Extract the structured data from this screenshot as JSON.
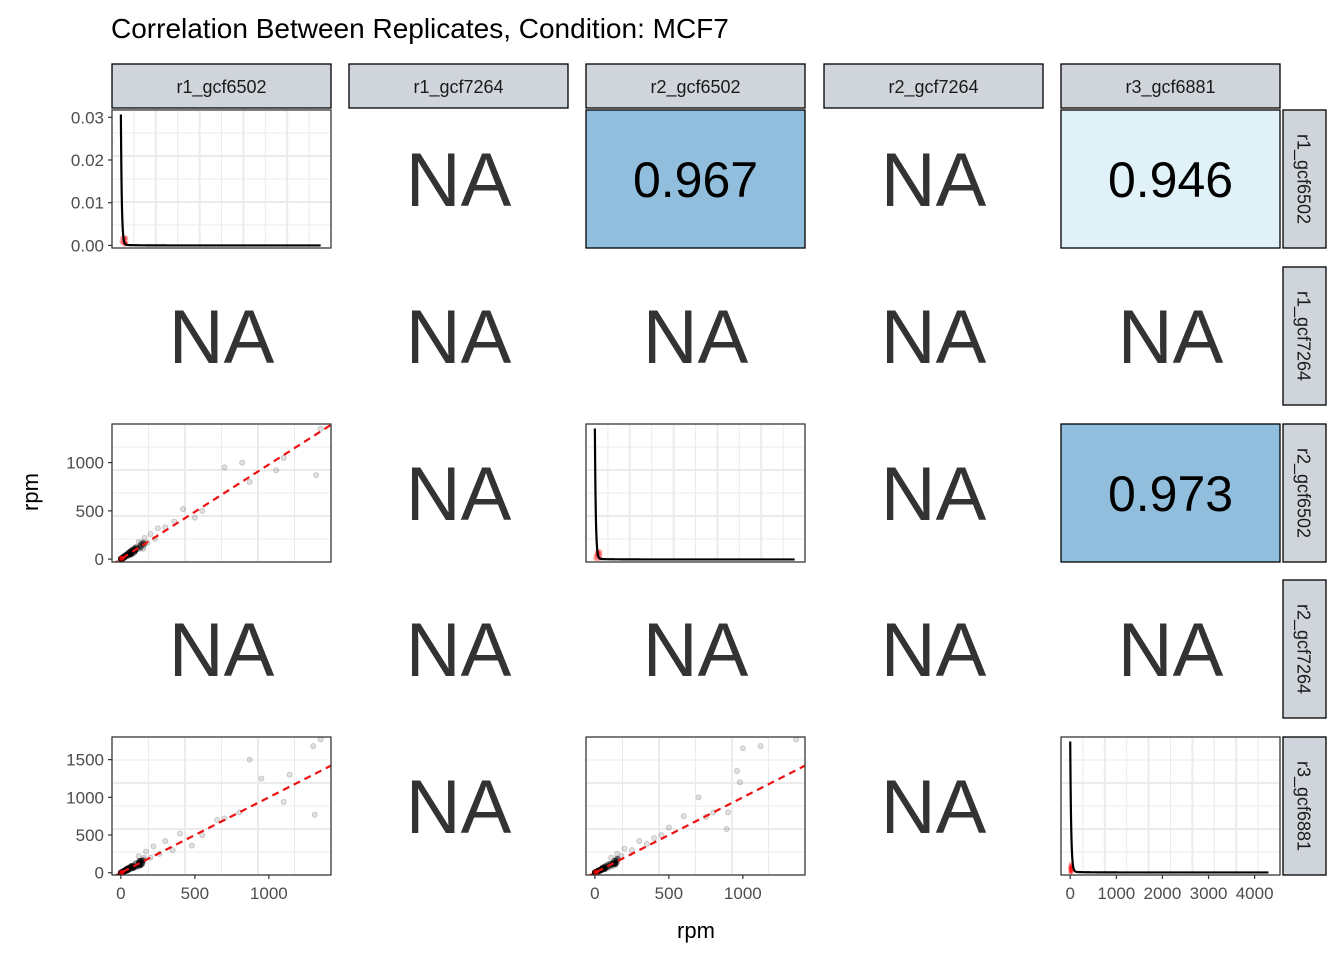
{
  "chart_data": {
    "type": "pairs",
    "title": "Correlation Between Replicates, Condition: MCF7",
    "xlabel": "rpm",
    "ylabel": "rpm",
    "samples": [
      "r1_gcf6502",
      "r1_gcf7264",
      "r2_gcf6502",
      "r2_gcf7264",
      "r3_gcf6881"
    ],
    "na_label": "NA",
    "correlations": [
      {
        "row": "r1_gcf6502",
        "col": "r2_gcf6502",
        "value": "0.967",
        "fill": "#91bedc"
      },
      {
        "row": "r1_gcf6502",
        "col": "r3_gcf6881",
        "value": "0.946",
        "fill": "#e0f2f8"
      },
      {
        "row": "r2_gcf6502",
        "col": "r3_gcf6881",
        "value": "0.973",
        "fill": "#91bedc"
      }
    ],
    "density_panels": [
      {
        "sample": "r1_gcf6502",
        "yticks": [
          "0.00",
          "0.01",
          "0.02",
          "0.03"
        ],
        "ylim": [
          0,
          0.031
        ],
        "xlim": [
          -60,
          1420
        ],
        "peak": 0.0305,
        "decay": 6,
        "xmax": 1350
      },
      {
        "sample": "r2_gcf6502",
        "xlim": [
          -60,
          1420
        ],
        "peak": 0.0305,
        "decay": 6,
        "xmax": 1350
      },
      {
        "sample": "r3_gcf6881",
        "xticks": [
          "0",
          "1000",
          "2000",
          "3000",
          "4000"
        ],
        "xtick_values": [
          0,
          1000,
          2000,
          3000,
          4000
        ],
        "xlim": [
          -200,
          4550
        ],
        "peak": 0.0305,
        "decay": 20,
        "xmax": 4300
      }
    ],
    "scatter_panels": [
      {
        "row": "r2_gcf6502",
        "col": "r1_gcf6502",
        "xlim": [
          -60,
          1420
        ],
        "ylim": [
          -30,
          1400
        ],
        "yticks": [
          "0",
          "500",
          "1000"
        ],
        "ytick_values": [
          0,
          500,
          1000
        ],
        "fit_slope": 0.98,
        "outliers": [
          [
            1350,
            1350
          ],
          [
            1320,
            870
          ],
          [
            1100,
            1050
          ],
          [
            1050,
            920
          ],
          [
            870,
            800
          ],
          [
            820,
            1000
          ],
          [
            700,
            950
          ],
          [
            550,
            500
          ],
          [
            500,
            430
          ],
          [
            420,
            520
          ],
          [
            360,
            390
          ],
          [
            300,
            330
          ],
          [
            250,
            320
          ],
          [
            230,
            210
          ],
          [
            200,
            260
          ],
          [
            180,
            170
          ],
          [
            160,
            220
          ],
          [
            140,
            150
          ],
          [
            120,
            180
          ],
          [
            100,
            120
          ]
        ]
      },
      {
        "row": "r3_gcf6881",
        "col": "r1_gcf6502",
        "xlim": [
          -60,
          1420
        ],
        "ylim": [
          -30,
          1800
        ],
        "yticks": [
          "0",
          "500",
          "1000",
          "1500"
        ],
        "ytick_values": [
          0,
          500,
          1000,
          1500
        ],
        "xticks": [
          "0",
          "500",
          "1000"
        ],
        "xtick_values": [
          0,
          500,
          1000
        ],
        "fit_slope": 1.0,
        "outliers": [
          [
            1350,
            1770
          ],
          [
            1300,
            1680
          ],
          [
            1310,
            770
          ],
          [
            1140,
            1300
          ],
          [
            1100,
            940
          ],
          [
            950,
            1250
          ],
          [
            870,
            1500
          ],
          [
            800,
            800
          ],
          [
            700,
            720
          ],
          [
            650,
            700
          ],
          [
            550,
            500
          ],
          [
            480,
            360
          ],
          [
            400,
            520
          ],
          [
            350,
            300
          ],
          [
            300,
            420
          ],
          [
            260,
            250
          ],
          [
            220,
            350
          ],
          [
            200,
            200
          ],
          [
            170,
            280
          ],
          [
            140,
            160
          ],
          [
            120,
            220
          ],
          [
            100,
            130
          ]
        ]
      },
      {
        "row": "r3_gcf6881",
        "col": "r2_gcf6502",
        "xlim": [
          -60,
          1420
        ],
        "ylim": [
          -30,
          1800
        ],
        "xticks": [
          "0",
          "500",
          "1000"
        ],
        "xtick_values": [
          0,
          500,
          1000
        ],
        "fit_slope": 1.0,
        "outliers": [
          [
            1360,
            1770
          ],
          [
            1120,
            1680
          ],
          [
            1000,
            1650
          ],
          [
            980,
            1200
          ],
          [
            960,
            1350
          ],
          [
            900,
            800
          ],
          [
            890,
            580
          ],
          [
            800,
            800
          ],
          [
            750,
            740
          ],
          [
            700,
            1000
          ],
          [
            600,
            750
          ],
          [
            500,
            600
          ],
          [
            450,
            500
          ],
          [
            400,
            460
          ],
          [
            350,
            380
          ],
          [
            300,
            420
          ],
          [
            250,
            300
          ],
          [
            200,
            320
          ],
          [
            180,
            220
          ],
          [
            150,
            250
          ],
          [
            130,
            160
          ],
          [
            110,
            200
          ]
        ]
      }
    ]
  }
}
